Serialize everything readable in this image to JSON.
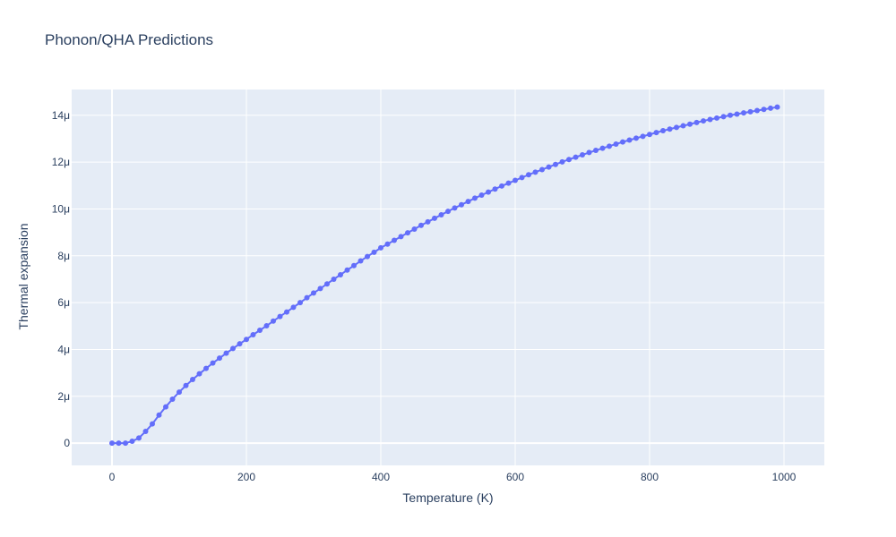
{
  "chart_data": {
    "type": "line",
    "title": "Phonon/QHA Predictions",
    "xlabel": "Temperature (K)",
    "ylabel": "Thermal expansion",
    "xlim": [
      -60,
      1060
    ],
    "ylim": [
      -0.95,
      15.1
    ],
    "x_ticks": [
      0,
      200,
      400,
      600,
      800,
      1000
    ],
    "x_tick_labels": [
      "0",
      "200",
      "400",
      "600",
      "800",
      "1000"
    ],
    "y_ticks": [
      0,
      2,
      4,
      6,
      8,
      10,
      12,
      14
    ],
    "y_tick_labels": [
      "0",
      "2μ",
      "4μ",
      "6μ",
      "8μ",
      "10μ",
      "12μ",
      "14μ"
    ],
    "y_unit_note": "values in units of 1e-6",
    "grid": true,
    "legend": "none",
    "colors": {
      "line": "#636efa",
      "plot_bg": "#e5ecf6",
      "grid": "#ffffff",
      "text": "#2a3f5f"
    },
    "x": [
      0,
      10,
      20,
      30,
      40,
      50,
      60,
      70,
      80,
      90,
      100,
      110,
      120,
      130,
      140,
      150,
      160,
      170,
      180,
      190,
      200,
      210,
      220,
      230,
      240,
      250,
      260,
      270,
      280,
      290,
      300,
      310,
      320,
      330,
      340,
      350,
      360,
      370,
      380,
      390,
      400,
      410,
      420,
      430,
      440,
      450,
      460,
      470,
      480,
      490,
      500,
      510,
      520,
      530,
      540,
      550,
      560,
      570,
      580,
      590,
      600,
      610,
      620,
      630,
      640,
      650,
      660,
      670,
      680,
      690,
      700,
      710,
      720,
      730,
      740,
      750,
      760,
      770,
      780,
      790,
      800,
      810,
      820,
      830,
      840,
      850,
      860,
      870,
      880,
      890,
      900,
      910,
      920,
      930,
      940,
      950,
      960,
      970,
      980,
      990
    ],
    "series": [
      {
        "values": [
          0.0,
          0.0,
          0.0,
          0.08,
          0.22,
          0.5,
          0.82,
          1.2,
          1.55,
          1.88,
          2.18,
          2.46,
          2.72,
          2.96,
          3.19,
          3.42,
          3.63,
          3.84,
          4.04,
          4.24,
          4.43,
          4.63,
          4.82,
          5.01,
          5.21,
          5.41,
          5.6,
          5.8,
          6.0,
          6.21,
          6.41,
          6.6,
          6.8,
          7.0,
          7.19,
          7.39,
          7.58,
          7.78,
          7.97,
          8.15,
          8.34,
          8.5,
          8.66,
          8.82,
          8.98,
          9.14,
          9.3,
          9.45,
          9.6,
          9.75,
          9.9,
          10.04,
          10.18,
          10.32,
          10.46,
          10.59,
          10.72,
          10.85,
          10.98,
          11.1,
          11.22,
          11.34,
          11.46,
          11.57,
          11.68,
          11.79,
          11.9,
          12.01,
          12.11,
          12.21,
          12.31,
          12.41,
          12.5,
          12.59,
          12.68,
          12.77,
          12.86,
          12.94,
          13.02,
          13.1,
          13.18,
          13.26,
          13.34,
          13.41,
          13.48,
          13.55,
          13.62,
          13.69,
          13.76,
          13.82,
          13.88,
          13.94,
          14.0,
          14.05,
          14.1,
          14.15,
          14.2,
          14.25,
          14.3,
          14.35
        ]
      }
    ]
  }
}
